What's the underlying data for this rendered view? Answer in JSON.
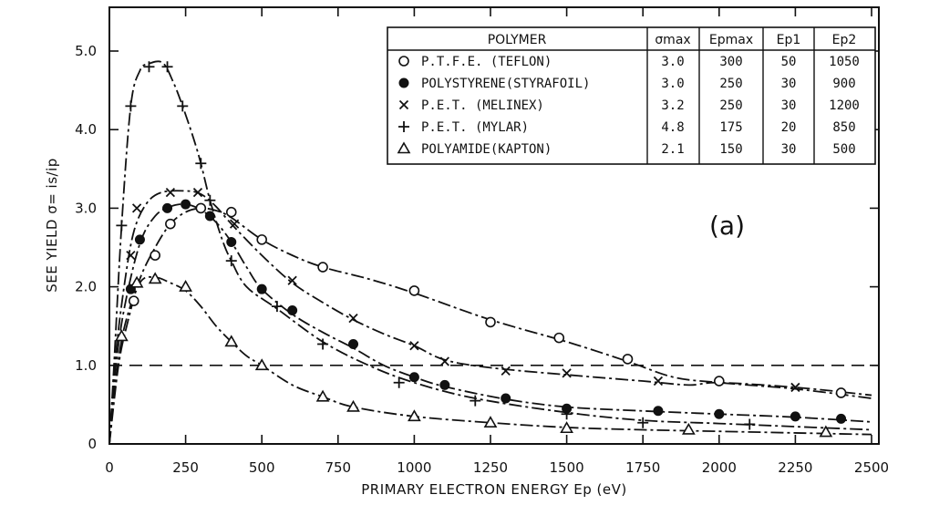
{
  "chart_data": {
    "type": "line",
    "title": "",
    "xlabel": "PRIMARY ELECTRON ENERGY Ep (eV)",
    "ylabel": "SEE YIELD σ= is/ip",
    "xlim": [
      0,
      2500
    ],
    "ylim": [
      0,
      5.5
    ],
    "x_ticks": [
      "0",
      "250",
      "500",
      "750",
      "1000",
      "1250",
      "1500",
      "1750",
      "2000",
      "2250",
      "2500"
    ],
    "y_ticks": [
      "0",
      "1.0",
      "2.0",
      "3.0",
      "4.0",
      "5.0"
    ],
    "grid": false,
    "legend_position": "top-right",
    "reference_line": {
      "y": 1.0,
      "style": "dashed"
    },
    "annotation": "(a)",
    "legend_table": {
      "headers": [
        "POLYMER",
        "σmax",
        "Epmax",
        "Ep1",
        "Ep2"
      ],
      "rows": [
        [
          "P.T.F.E. (TEFLON)",
          "3.0",
          "300",
          "50",
          "1050"
        ],
        [
          "POLYSTYRENE(STYRAFOIL)",
          "3.0",
          "250",
          "30",
          "900"
        ],
        [
          "P.E.T. (MELINEX)",
          "3.2",
          "250",
          "30",
          "1200"
        ],
        [
          "P.E.T. (MYLAR)",
          "4.8",
          "175",
          "20",
          "850"
        ],
        [
          "POLYAMIDE(KAPTON)",
          "2.1",
          "150",
          "30",
          "500"
        ]
      ],
      "markers": [
        "o",
        "●",
        "x",
        "+",
        "Δ"
      ]
    },
    "series": [
      {
        "name": "P.T.F.E. (TEFLON)",
        "marker": "circle-open",
        "points": [
          [
            80,
            1.82
          ],
          [
            150,
            2.4
          ],
          [
            200,
            2.8
          ],
          [
            300,
            3.0
          ],
          [
            400,
            2.95
          ],
          [
            500,
            2.6
          ],
          [
            700,
            2.25
          ],
          [
            1000,
            1.95
          ],
          [
            1250,
            1.55
          ],
          [
            1475,
            1.35
          ],
          [
            1700,
            1.08
          ],
          [
            2000,
            0.8
          ],
          [
            2400,
            0.65
          ]
        ],
        "curve": [
          [
            0,
            0
          ],
          [
            30,
            1.0
          ],
          [
            60,
            1.55
          ],
          [
            100,
            2.1
          ],
          [
            150,
            2.5
          ],
          [
            200,
            2.8
          ],
          [
            250,
            2.95
          ],
          [
            300,
            3.0
          ],
          [
            350,
            2.97
          ],
          [
            400,
            2.88
          ],
          [
            500,
            2.6
          ],
          [
            600,
            2.4
          ],
          [
            700,
            2.25
          ],
          [
            850,
            2.1
          ],
          [
            1000,
            1.92
          ],
          [
            1250,
            1.58
          ],
          [
            1500,
            1.3
          ],
          [
            1700,
            1.05
          ],
          [
            1850,
            0.85
          ],
          [
            2000,
            0.78
          ],
          [
            2250,
            0.7
          ],
          [
            2500,
            0.58
          ]
        ]
      },
      {
        "name": "POLYSTYRENE(STYRAFOIL)",
        "marker": "circle-filled",
        "points": [
          [
            70,
            1.97
          ],
          [
            100,
            2.6
          ],
          [
            190,
            3.0
          ],
          [
            250,
            3.05
          ],
          [
            330,
            2.9
          ],
          [
            400,
            2.57
          ],
          [
            500,
            1.97
          ],
          [
            600,
            1.7
          ],
          [
            800,
            1.27
          ],
          [
            1000,
            0.85
          ],
          [
            1100,
            0.75
          ],
          [
            1300,
            0.58
          ],
          [
            1500,
            0.45
          ],
          [
            1800,
            0.42
          ],
          [
            2000,
            0.38
          ],
          [
            2250,
            0.35
          ],
          [
            2400,
            0.32
          ]
        ],
        "curve": [
          [
            0,
            0
          ],
          [
            20,
            0.95
          ],
          [
            50,
            1.75
          ],
          [
            100,
            2.55
          ],
          [
            150,
            2.9
          ],
          [
            200,
            3.02
          ],
          [
            250,
            3.05
          ],
          [
            300,
            2.98
          ],
          [
            350,
            2.82
          ],
          [
            400,
            2.57
          ],
          [
            450,
            2.25
          ],
          [
            500,
            1.97
          ],
          [
            600,
            1.65
          ],
          [
            700,
            1.42
          ],
          [
            800,
            1.22
          ],
          [
            900,
            1.0
          ],
          [
            1000,
            0.85
          ],
          [
            1100,
            0.73
          ],
          [
            1300,
            0.57
          ],
          [
            1500,
            0.47
          ],
          [
            1750,
            0.42
          ],
          [
            2000,
            0.38
          ],
          [
            2250,
            0.34
          ],
          [
            2500,
            0.28
          ]
        ]
      },
      {
        "name": "P.E.T. (MELINEX)",
        "marker": "x",
        "points": [
          [
            70,
            2.4
          ],
          [
            90,
            3.0
          ],
          [
            200,
            3.2
          ],
          [
            290,
            3.2
          ],
          [
            410,
            2.8
          ],
          [
            600,
            2.08
          ],
          [
            800,
            1.6
          ],
          [
            1000,
            1.25
          ],
          [
            1100,
            1.05
          ],
          [
            1300,
            0.93
          ],
          [
            1500,
            0.9
          ],
          [
            1800,
            0.8
          ],
          [
            2250,
            0.72
          ]
        ],
        "curve": [
          [
            0,
            0
          ],
          [
            20,
            1.1
          ],
          [
            50,
            2.05
          ],
          [
            80,
            2.7
          ],
          [
            120,
            3.05
          ],
          [
            170,
            3.2
          ],
          [
            250,
            3.22
          ],
          [
            300,
            3.18
          ],
          [
            350,
            3.02
          ],
          [
            400,
            2.8
          ],
          [
            500,
            2.4
          ],
          [
            600,
            2.05
          ],
          [
            700,
            1.8
          ],
          [
            800,
            1.58
          ],
          [
            900,
            1.4
          ],
          [
            1000,
            1.25
          ],
          [
            1100,
            1.07
          ],
          [
            1250,
            0.97
          ],
          [
            1500,
            0.88
          ],
          [
            1750,
            0.8
          ],
          [
            1900,
            0.75
          ],
          [
            2000,
            0.78
          ],
          [
            2250,
            0.72
          ],
          [
            2500,
            0.62
          ]
        ]
      },
      {
        "name": "P.E.T. (MYLAR)",
        "marker": "plus",
        "points": [
          [
            40,
            2.78
          ],
          [
            70,
            4.3
          ],
          [
            130,
            4.8
          ],
          [
            190,
            4.8
          ],
          [
            240,
            4.3
          ],
          [
            300,
            3.57
          ],
          [
            330,
            3.1
          ],
          [
            400,
            2.33
          ],
          [
            550,
            1.75
          ],
          [
            700,
            1.27
          ],
          [
            950,
            0.78
          ],
          [
            1200,
            0.55
          ],
          [
            1500,
            0.38
          ],
          [
            1750,
            0.27
          ],
          [
            2100,
            0.25
          ]
        ],
        "curve": [
          [
            0,
            0
          ],
          [
            15,
            1.0
          ],
          [
            40,
            2.78
          ],
          [
            70,
            4.3
          ],
          [
            100,
            4.75
          ],
          [
            130,
            4.84
          ],
          [
            175,
            4.85
          ],
          [
            210,
            4.6
          ],
          [
            240,
            4.3
          ],
          [
            275,
            3.9
          ],
          [
            300,
            3.57
          ],
          [
            330,
            3.1
          ],
          [
            370,
            2.6
          ],
          [
            400,
            2.33
          ],
          [
            450,
            2.0
          ],
          [
            550,
            1.72
          ],
          [
            700,
            1.3
          ],
          [
            850,
            1.0
          ],
          [
            1000,
            0.78
          ],
          [
            1200,
            0.58
          ],
          [
            1500,
            0.4
          ],
          [
            1750,
            0.3
          ],
          [
            2000,
            0.26
          ],
          [
            2250,
            0.22
          ],
          [
            2500,
            0.18
          ]
        ]
      },
      {
        "name": "POLYAMIDE(KAPTON)",
        "marker": "triangle-open",
        "points": [
          [
            40,
            1.37
          ],
          [
            90,
            2.05
          ],
          [
            150,
            2.1
          ],
          [
            250,
            2.0
          ],
          [
            400,
            1.3
          ],
          [
            500,
            1.0
          ],
          [
            700,
            0.6
          ],
          [
            800,
            0.47
          ],
          [
            1000,
            0.35
          ],
          [
            1250,
            0.27
          ],
          [
            1500,
            0.2
          ],
          [
            1900,
            0.18
          ],
          [
            2350,
            0.15
          ]
        ],
        "curve": [
          [
            0,
            0
          ],
          [
            20,
            0.8
          ],
          [
            50,
            1.5
          ],
          [
            100,
            2.05
          ],
          [
            150,
            2.12
          ],
          [
            200,
            2.05
          ],
          [
            250,
            1.95
          ],
          [
            300,
            1.75
          ],
          [
            350,
            1.5
          ],
          [
            400,
            1.3
          ],
          [
            450,
            1.12
          ],
          [
            500,
            1.0
          ],
          [
            600,
            0.75
          ],
          [
            700,
            0.6
          ],
          [
            800,
            0.47
          ],
          [
            1000,
            0.35
          ],
          [
            1250,
            0.27
          ],
          [
            1500,
            0.21
          ],
          [
            1750,
            0.18
          ],
          [
            2000,
            0.16
          ],
          [
            2250,
            0.14
          ],
          [
            2500,
            0.12
          ]
        ]
      }
    ]
  }
}
